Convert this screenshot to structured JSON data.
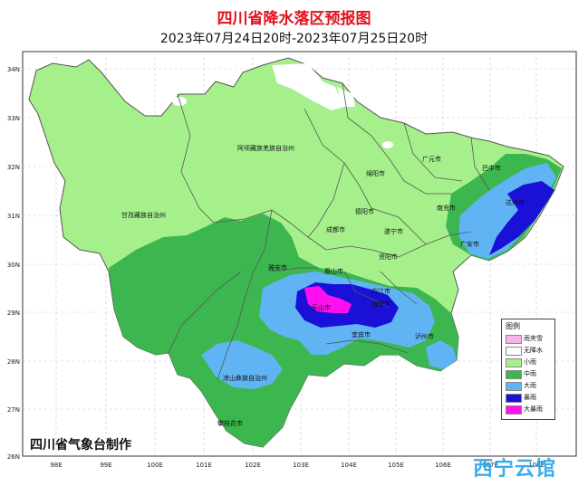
{
  "title": "四川省降水落区预报图",
  "subtitle": "2023年07月24日20时-2023年07月25日20时",
  "credit": "四川省气象台制作",
  "watermark": "西宁云馆",
  "lat_labels": [
    "34N",
    "33N",
    "32N",
    "31N",
    "30N",
    "29N",
    "28N",
    "27N",
    "26N"
  ],
  "lon_labels": [
    "98E",
    "99E",
    "100E",
    "101E",
    "102E",
    "103E",
    "104E",
    "105E",
    "106E",
    "107E",
    "108E"
  ],
  "places": [
    {
      "name": "阿坝藏族羌族自治州"
    },
    {
      "name": "甘孜藏族自治州"
    },
    {
      "name": "凉山彝族自治州"
    },
    {
      "name": "攀枝花市"
    },
    {
      "name": "广元市"
    },
    {
      "name": "巴中市"
    },
    {
      "name": "绵阳市"
    },
    {
      "name": "南充市"
    },
    {
      "name": "达州市"
    },
    {
      "name": "德阳市"
    },
    {
      "name": "成都市"
    },
    {
      "name": "遂宁市"
    },
    {
      "name": "广安市"
    },
    {
      "name": "资阳市"
    },
    {
      "name": "雅安市"
    },
    {
      "name": "眉山市"
    },
    {
      "name": "乐山市"
    },
    {
      "name": "内江市"
    },
    {
      "name": "自贡市"
    },
    {
      "name": "宜宾市"
    },
    {
      "name": "泸州市"
    }
  ],
  "legend": {
    "title": "图例",
    "items": [
      {
        "label": "雨夹雪",
        "color": "#f4b6e6"
      },
      {
        "label": "无降水",
        "color": "#ffffff"
      },
      {
        "label": "小雨",
        "color": "#a6f08c"
      },
      {
        "label": "中雨",
        "color": "#3cb750"
      },
      {
        "label": "大雨",
        "color": "#60b4f4"
      },
      {
        "label": "暴雨",
        "color": "#1a10d8"
      },
      {
        "label": "大暴雨",
        "color": "#ff10ee"
      }
    ]
  }
}
